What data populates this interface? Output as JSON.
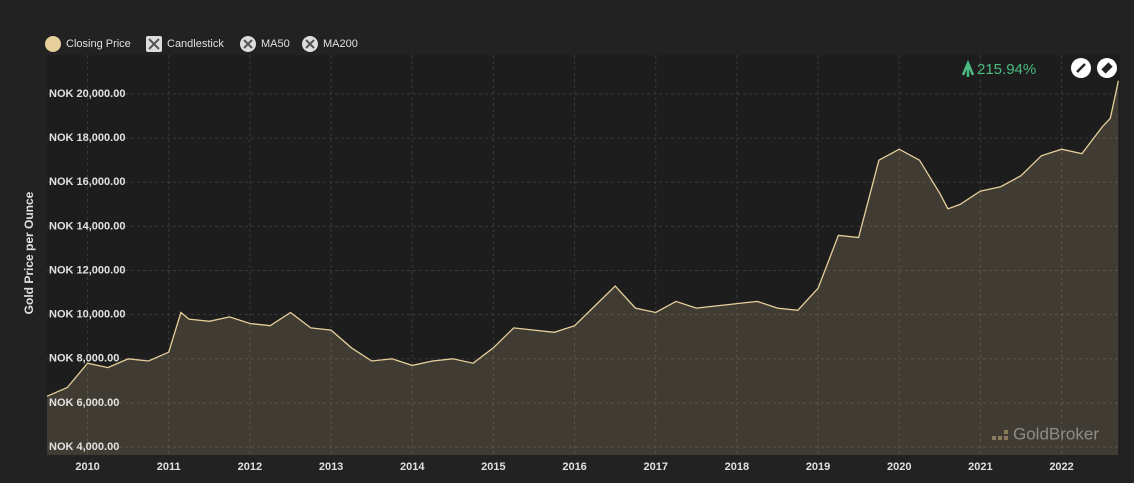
{
  "chart_data": {
    "type": "area",
    "y_label": "Gold Price per Ounce",
    "annotation": "215.94%",
    "legend_toggles": [
      "Candlestick",
      "MA50",
      "MA200"
    ],
    "watermark": "GoldBroker",
    "x": [
      2009.5,
      2009.75,
      2010.0,
      2010.25,
      2010.5,
      2010.75,
      2011.0,
      2011.15,
      2011.25,
      2011.5,
      2011.75,
      2012.0,
      2012.25,
      2012.5,
      2012.75,
      2013.0,
      2013.25,
      2013.5,
      2013.75,
      2014.0,
      2014.25,
      2014.5,
      2014.75,
      2015.0,
      2015.25,
      2015.5,
      2015.75,
      2016.0,
      2016.25,
      2016.5,
      2016.75,
      2017.0,
      2017.25,
      2017.5,
      2017.75,
      2018.0,
      2018.25,
      2018.5,
      2018.75,
      2019.0,
      2019.25,
      2019.5,
      2019.75,
      2020.0,
      2020.25,
      2020.5,
      2020.6,
      2020.75,
      2021.0,
      2021.25,
      2021.5,
      2021.75,
      2022.0,
      2022.25,
      2022.5,
      2022.6,
      2022.7
    ],
    "series": [
      {
        "name": "Closing Price",
        "color": "#e6cf9a",
        "values": [
          6300,
          6700,
          7800,
          7600,
          8000,
          7900,
          8300,
          10100,
          9800,
          9700,
          9900,
          9600,
          9500,
          10100,
          9400,
          9300,
          8500,
          7900,
          8000,
          7700,
          7900,
          8000,
          7800,
          8500,
          9400,
          9300,
          9200,
          9500,
          10400,
          11300,
          10300,
          10100,
          10600,
          10300,
          10400,
          10500,
          10600,
          10300,
          10200,
          11200,
          13600,
          13500,
          17000,
          17500,
          17000,
          15500,
          14800,
          15000,
          15600,
          15800,
          16300,
          17200,
          17500,
          17300,
          18500,
          18900,
          20600
        ]
      }
    ],
    "xlim": [
      2009.5,
      2022.72
    ],
    "xticks": [
      2010,
      2011,
      2012,
      2013,
      2014,
      2015,
      2016,
      2017,
      2018,
      2019,
      2020,
      2021,
      2022
    ],
    "ylim": [
      3640,
      21770
    ],
    "yticks": [
      {
        "value": 4000,
        "label": "NOK 4,000.00"
      },
      {
        "value": 6000,
        "label": "NOK 6,000.00"
      },
      {
        "value": 8000,
        "label": "NOK 8,000.00"
      },
      {
        "value": 10000,
        "label": "NOK 10,000.00"
      },
      {
        "value": 12000,
        "label": "NOK 12,000.00"
      },
      {
        "value": 14000,
        "label": "NOK 14,000.00"
      },
      {
        "value": 16000,
        "label": "NOK 16,000.00"
      },
      {
        "value": 18000,
        "label": "NOK 18,000.00"
      },
      {
        "value": 20000,
        "label": "NOK 20,000.00"
      }
    ],
    "grid": true
  }
}
